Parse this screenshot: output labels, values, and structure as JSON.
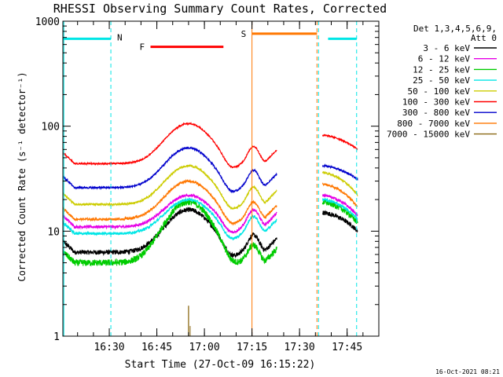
{
  "chart_data": {
    "type": "line",
    "title": "RHESSI Observing Summary Count Rates, Corrected",
    "xlabel": "Start Time (27-Oct-09 16:15:22)",
    "ylabel": "Corrected Count Rate (s⁻¹ detector⁻¹)",
    "footer": "16-Oct-2021 08:21",
    "y_scale": "log",
    "ylim": [
      1,
      1000
    ],
    "xlim": [
      "16:15:22",
      "17:55:00"
    ],
    "x_ticks": [
      "16:30",
      "16:45",
      "17:00",
      "17:15",
      "17:30",
      "17:45"
    ],
    "y_ticks": [
      "1",
      "10",
      "100",
      "1000"
    ],
    "legend": {
      "placement": "right",
      "header": [
        "Det 1,3,4,5,6,9,",
        "Att 0"
      ]
    },
    "series": [
      {
        "name": "3 - 6 keV",
        "color": "#000000",
        "base": 6.3,
        "flare": 16,
        "pre": 13,
        "post": 15,
        "end": 10,
        "noise": 0.05
      },
      {
        "name": "6 - 12 keV",
        "color": "#e600e6",
        "base": 11,
        "flare": 22,
        "pre": 16,
        "post": 22,
        "end": 14,
        "noise": 0.03
      },
      {
        "name": "12 - 25 keV",
        "color": "#00cc00",
        "base": 5.0,
        "flare": 19,
        "pre": 12,
        "post": 19,
        "end": 12,
        "noise": 0.07
      },
      {
        "name": "25 - 50 keV",
        "color": "#00e6e6",
        "base": 9.5,
        "flare": 20,
        "pre": 15,
        "post": 20,
        "end": 13,
        "noise": 0.03
      },
      {
        "name": "50 - 100 keV",
        "color": "#cccc00",
        "base": 18,
        "flare": 42,
        "pre": 28,
        "post": 36,
        "end": 22,
        "noise": 0.02
      },
      {
        "name": "100 - 300 keV",
        "color": "#ff0000",
        "base": 44,
        "flare": 106,
        "pre": 72,
        "post": 82,
        "end": 60,
        "noise": 0.015
      },
      {
        "name": "300 - 800 keV",
        "color": "#0000cc",
        "base": 26,
        "flare": 62,
        "pre": 42,
        "post": 42,
        "end": 31,
        "noise": 0.02
      },
      {
        "name": "800 - 7000 keV",
        "color": "#ff7700",
        "base": 13,
        "flare": 30,
        "pre": 20,
        "post": 28,
        "end": 17,
        "noise": 0.025
      },
      {
        "name": "7000 - 15000 keV",
        "color": "#8b6914",
        "base": 0,
        "flare": 0,
        "pre": 0,
        "post": 0,
        "end": 0,
        "noise": 0
      }
    ],
    "spike_7000_15000": {
      "time": "16:55:00",
      "value": 1.95
    },
    "flags": [
      {
        "label": "N",
        "color": "#00e6e6",
        "intervals": [
          [
            "16:15:22",
            "16:30:30"
          ],
          [
            "17:39:00",
            "17:48:00"
          ]
        ],
        "value": 680
      },
      {
        "label": "F",
        "color": "#ff0000",
        "intervals": [
          [
            "16:43:00",
            "17:06:00"
          ]
        ],
        "value": 570
      },
      {
        "label": "S",
        "color": "#ff7700",
        "intervals": [
          [
            "17:15:00",
            "17:35:30"
          ]
        ],
        "value": 760
      }
    ],
    "vlines": [
      {
        "time": "16:15:40",
        "color": "#00e6e6",
        "style": "solid"
      },
      {
        "time": "16:30:30",
        "color": "#00e6e6",
        "style": "dashed"
      },
      {
        "time": "17:15:00",
        "color": "#ff7700",
        "style": "solid"
      },
      {
        "time": "17:35:30",
        "color": "#ff7700",
        "style": "dashed"
      },
      {
        "time": "17:36:00",
        "color": "#00e6e6",
        "style": "dashed"
      },
      {
        "time": "17:48:00",
        "color": "#00e6e6",
        "style": "dashed"
      }
    ],
    "segments": [
      [
        "16:15:22",
        "17:22:50"
      ],
      [
        "17:37:15",
        "17:48:20"
      ]
    ]
  }
}
